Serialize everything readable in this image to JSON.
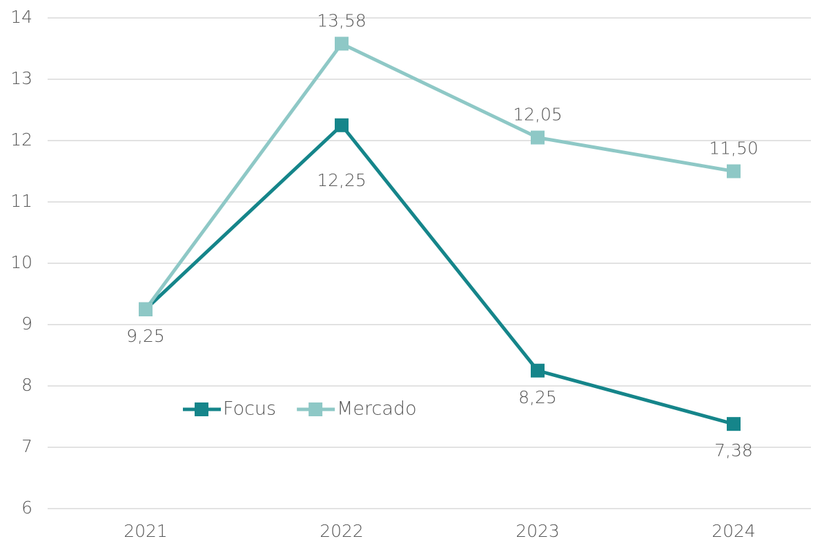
{
  "chart_data": {
    "type": "line",
    "categories": [
      "2021",
      "2022",
      "2023",
      "2024"
    ],
    "series": [
      {
        "name": "Focus",
        "color": "#15858a",
        "values": [
          9.25,
          12.25,
          8.25,
          7.38
        ],
        "value_labels": [
          "9,25",
          "12,25",
          "8,25",
          "7,38"
        ],
        "label_side": "below"
      },
      {
        "name": "Mercado",
        "color": "#8ec8c6",
        "values": [
          9.25,
          13.58,
          12.05,
          11.5
        ],
        "value_labels": [
          null,
          "13,58",
          "12,05",
          "11,50"
        ],
        "label_side": "above"
      }
    ],
    "ylim": [
      6,
      14
    ],
    "yticks": [
      6,
      7,
      8,
      9,
      10,
      11,
      12,
      13,
      14
    ],
    "grid": true,
    "legend": "center-left"
  }
}
